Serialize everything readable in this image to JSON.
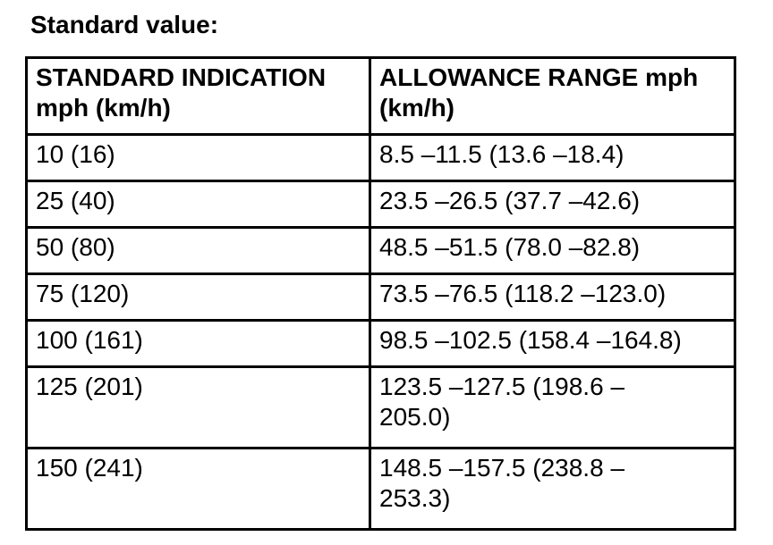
{
  "page": {
    "title": "Standard value:"
  },
  "colors": {
    "background": "#ffffff",
    "text": "#000000",
    "table_border": "#000000"
  },
  "table": {
    "columns": [
      {
        "label": "STANDARD INDICATION\nmph (km/h)"
      },
      {
        "label": "ALLOWANCE RANGE mph\n(km/h)"
      }
    ],
    "rows": [
      {
        "standard": "10 (16)",
        "allowance": "8.5 –11.5 (13.6 –18.4)"
      },
      {
        "standard": "25 (40)",
        "allowance": "23.5 –26.5 (37.7 –42.6)"
      },
      {
        "standard": "50 (80)",
        "allowance": "48.5 –51.5 (78.0 –82.8)"
      },
      {
        "standard": "75 (120)",
        "allowance": "73.5 –76.5 (118.2 –123.0)"
      },
      {
        "standard": "100 (161)",
        "allowance": "98.5 –102.5 (158.4 –164.8)"
      },
      {
        "standard": "125 (201)",
        "allowance": "123.5 –127.5 (198.6 –\n205.0)"
      },
      {
        "standard": "150 (241)",
        "allowance": "148.5 –157.5 (238.8 –\n253.3)"
      }
    ]
  }
}
